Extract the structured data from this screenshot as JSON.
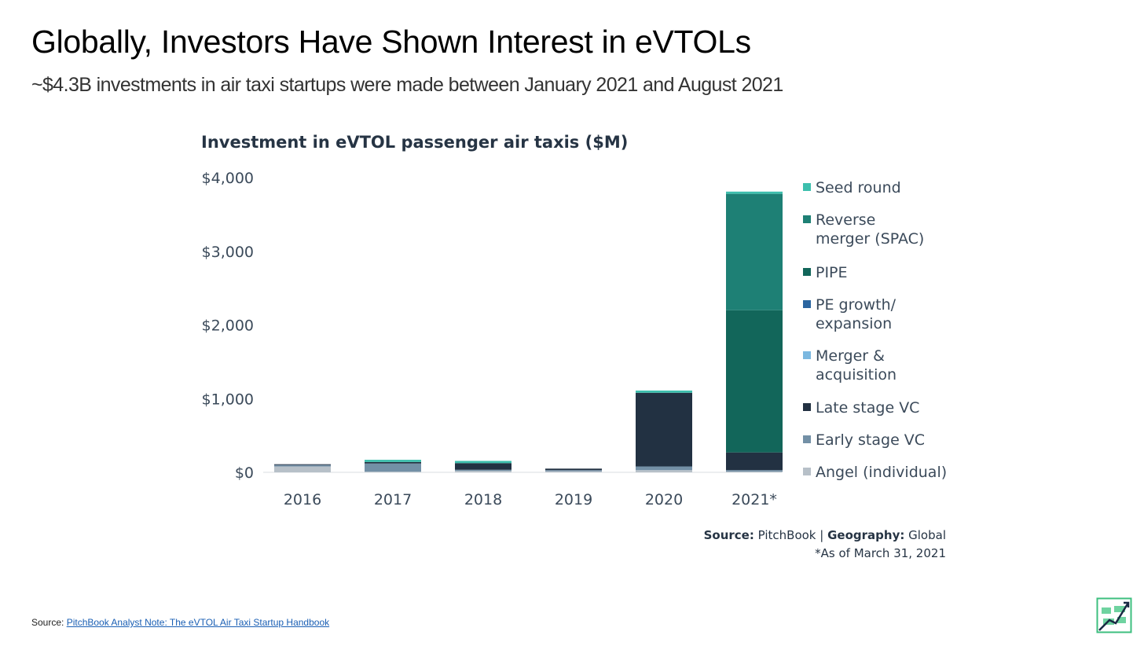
{
  "page": {
    "title": "Globally, Investors Have Shown Interest in eVTOLs",
    "subtitle": "~$4.3B investments in air taxi startups were made between January 2021 and August 2021"
  },
  "footer": {
    "prefix": "Source: ",
    "link_text": "PitchBook Analyst Note: The eVTOL Air Taxi Startup Handbook"
  },
  "logo": {
    "icon": "growth-chart-logo-icon"
  },
  "chart_data": {
    "type": "bar",
    "stacked": true,
    "title": "Investment in eVTOL passenger air taxis ($M)",
    "xlabel": "",
    "ylabel": "",
    "ylim": [
      0,
      4000
    ],
    "yticks": [
      0,
      1000,
      2000,
      3000,
      4000
    ],
    "ytick_labels": [
      "$0",
      "$1,000",
      "$2,000",
      "$3,000",
      "$4,000"
    ],
    "categories": [
      "2016",
      "2017",
      "2018",
      "2019",
      "2020",
      "2021*"
    ],
    "series": [
      {
        "name": "Angel (individual)",
        "color": "#b7c0c8",
        "values": [
          80,
          10,
          20,
          15,
          30,
          10
        ]
      },
      {
        "name": "Early stage VC",
        "color": "#7390a6",
        "values": [
          20,
          110,
          15,
          15,
          50,
          20
        ]
      },
      {
        "name": "Late stage VC",
        "color": "#223142",
        "values": [
          10,
          20,
          90,
          20,
          1000,
          240
        ]
      },
      {
        "name": "Merger & acquisition",
        "color": "#7bb8e0",
        "values": [
          0,
          0,
          0,
          0,
          0,
          0
        ]
      },
      {
        "name": "PE growth/ expansion",
        "color": "#2b65a0",
        "values": [
          0,
          0,
          0,
          0,
          0,
          0
        ]
      },
      {
        "name": "PIPE",
        "color": "#12665a",
        "values": [
          0,
          0,
          0,
          0,
          0,
          1930
        ]
      },
      {
        "name": "Reverse merger (SPAC)",
        "color": "#1e8075",
        "values": [
          0,
          0,
          0,
          0,
          0,
          1580
        ]
      },
      {
        "name": "Seed round",
        "color": "#3dbfad",
        "values": [
          0,
          30,
          30,
          0,
          30,
          30
        ]
      }
    ],
    "legend_order": [
      {
        "lines": [
          "Seed round"
        ],
        "color": "#3dbfad"
      },
      {
        "lines": [
          "Reverse",
          "merger (SPAC)"
        ],
        "color": "#1e8075"
      },
      {
        "lines": [
          "PIPE"
        ],
        "color": "#12665a"
      },
      {
        "lines": [
          "PE growth/",
          "expansion"
        ],
        "color": "#2b65a0"
      },
      {
        "lines": [
          "Merger &",
          "acquisition"
        ],
        "color": "#7bb8e0"
      },
      {
        "lines": [
          "Late stage VC"
        ],
        "color": "#223142"
      },
      {
        "lines": [
          "Early stage VC"
        ],
        "color": "#7390a6"
      },
      {
        "lines": [
          "Angel (individual)"
        ],
        "color": "#b7c0c8"
      }
    ],
    "legend_position": "right",
    "grid": false,
    "source_label": "Source:",
    "source_value": "PitchBook",
    "geography_label": "Geography:",
    "geography_value": "Global",
    "note": "*As of March 31, 2021"
  }
}
